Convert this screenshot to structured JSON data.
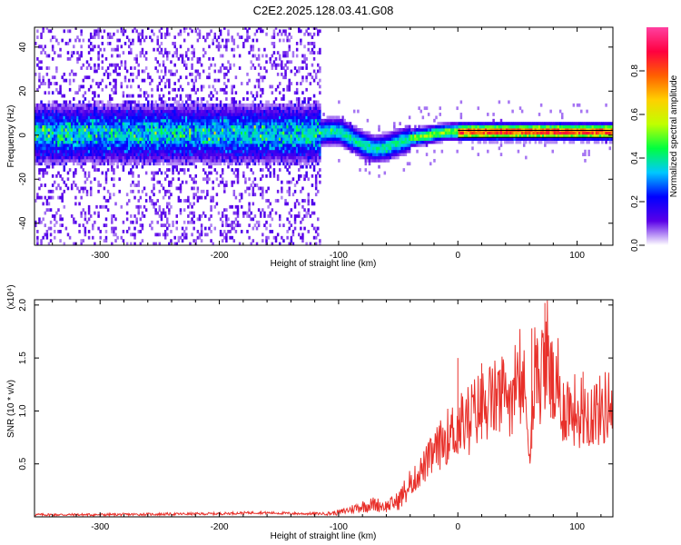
{
  "title": "C2E2.2025.128.03.41.G08",
  "chart_data": [
    {
      "type": "heatmap",
      "panel": "spectrogram",
      "xlabel": "Height of straight line (km)",
      "ylabel": "Frequency (Hz)",
      "xlim": [
        -355,
        130
      ],
      "ylim": [
        -50,
        49
      ],
      "xticks": [
        -300,
        -200,
        -100,
        0,
        100
      ],
      "yticks": [
        -40,
        -20,
        0,
        20,
        40
      ],
      "grid": false,
      "ridge_frequency": {
        "x": [
          -355,
          -120,
          -110,
          -100,
          -90,
          -80,
          -70,
          -60,
          -50,
          -40,
          -30,
          -20,
          -10,
          0,
          20,
          50,
          80,
          110,
          130
        ],
        "y": [
          0,
          0,
          1,
          1,
          -2,
          -5,
          -7,
          -6,
          -4,
          -2,
          -1,
          0,
          1,
          1,
          1,
          1,
          1,
          1,
          1
        ]
      },
      "colorbar": {
        "label": "Normalized spectral amplitude",
        "range": [
          0,
          1
        ],
        "ticks": [
          0.0,
          0.2,
          0.4,
          0.6,
          0.8
        ],
        "tick_labels": [
          "0.0",
          "0.2",
          "0.4",
          "0.6",
          "0.8"
        ],
        "colormap": [
          "#ffffff",
          "#5a00e8",
          "#0000ff",
          "#00c8ff",
          "#00ff40",
          "#c0ff00",
          "#ffd000",
          "#ff6000",
          "#ff0040",
          "#ff40a0"
        ]
      },
      "bright_cells": [
        {
          "x": -255,
          "y": 4
        },
        {
          "x": -322,
          "y": -5
        },
        {
          "x": -185,
          "y": 3
        }
      ]
    },
    {
      "type": "line",
      "panel": "snr",
      "xlabel": "Height of straight line (km)",
      "ylabel": "SNR (10 * v/v)",
      "multiplier_label": "(x10⁴)",
      "xlim": [
        -355,
        130
      ],
      "ylim": [
        0,
        2.05
      ],
      "xticks": [
        -300,
        -200,
        -100,
        0,
        100
      ],
      "yticks": [
        0.5,
        1.0,
        1.5,
        2.0
      ],
      "ytick_labels": [
        "0.5",
        "1.0",
        "1.5",
        "2.0"
      ],
      "grid": false,
      "line_color": "#e8302a",
      "series": [
        {
          "x": [
            -355,
            -300,
            -250,
            -200,
            -170,
            -130,
            -110,
            -100,
            -90,
            -80,
            -70,
            -60,
            -50,
            -40,
            -30,
            -20,
            -10,
            0,
            10,
            20,
            30,
            40,
            50,
            55,
            60,
            65,
            70,
            75,
            80,
            85,
            90,
            100,
            110,
            120,
            130
          ],
          "values": [
            0.02,
            0.02,
            0.025,
            0.03,
            0.04,
            0.03,
            0.03,
            0.04,
            0.07,
            0.1,
            0.12,
            0.1,
            0.15,
            0.3,
            0.45,
            0.6,
            0.75,
            0.85,
            0.95,
            1.05,
            1.1,
            1.15,
            1.2,
            1.25,
            0.7,
            1.25,
            1.35,
            1.55,
            1.2,
            1.05,
            1.05,
            1.0,
            1.0,
            1.0,
            1.1
          ]
        }
      ],
      "peaks": [
        {
          "x": 0,
          "y": 1.5
        },
        {
          "x": 20,
          "y": 1.45
        },
        {
          "x": 62,
          "y": 1.78
        },
        {
          "x": 73,
          "y": 2.02
        },
        {
          "x": 78,
          "y": 1.6
        },
        {
          "x": 105,
          "y": 1.37
        }
      ]
    }
  ]
}
